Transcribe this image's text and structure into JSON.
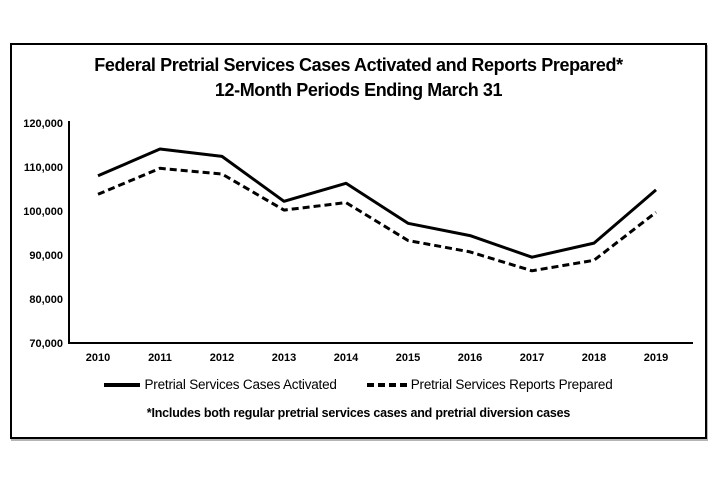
{
  "page": {
    "background": "#ffffff",
    "frame_border_color": "#000000"
  },
  "chart_data": {
    "type": "line",
    "title_line1": "Federal Pretrial Services Cases Activated and Reports Prepared*",
    "title_line2": "12-Month Periods Ending March 31",
    "footnote": "*Includes both regular pretrial services cases and pretrial diversion cases",
    "categories": [
      "2010",
      "2011",
      "2012",
      "2013",
      "2014",
      "2015",
      "2016",
      "2017",
      "2018",
      "2019"
    ],
    "series": [
      {
        "name": "Pretrial Services Cases Activated",
        "style": "solid",
        "values": [
          108000,
          114100,
          112400,
          102200,
          106300,
          97200,
          94400,
          89500,
          92700,
          104800
        ]
      },
      {
        "name": "Pretrial Services Reports Prepared",
        "style": "dashed",
        "values": [
          103800,
          109700,
          108400,
          100200,
          101900,
          93300,
          90700,
          86400,
          88800,
          99700
        ]
      }
    ],
    "ylim": [
      70000,
      120000
    ],
    "ytick_interval": 10000,
    "ytick_labels": [
      "120,000",
      "110,000",
      "100,000",
      "90,000",
      "80,000",
      "70,000"
    ],
    "xlabel": "",
    "ylabel": "",
    "grid": false,
    "legend_position": "bottom",
    "line_color": "#000000"
  }
}
